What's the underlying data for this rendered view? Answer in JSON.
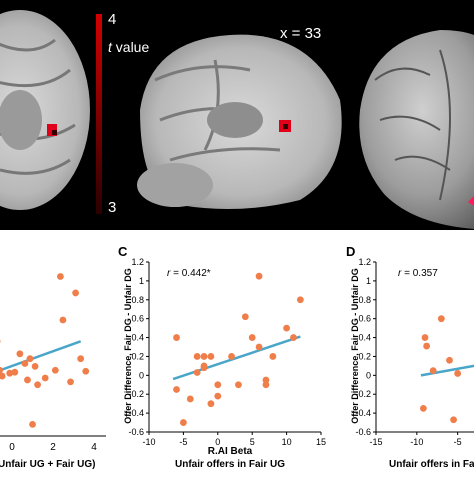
{
  "colorbar": {
    "max_label": "4",
    "min_label": "3",
    "stat_label_italic": "t",
    "stat_label_rest": " value"
  },
  "brain": {
    "slice_label": "x = 33"
  },
  "panels": {
    "left": {
      "x_tick_labels": [
        "0",
        "2",
        "4"
      ],
      "xlabel": "Unfair UG + Fair UG)"
    },
    "c": {
      "letter": "C",
      "r_italic": "r",
      "r_value": " = 0.442*",
      "ylabel": "Offer Difference, Fair DG - Unfair DG",
      "x_title": "R.AI Beta",
      "xlabel": "Unfair offers in Fair UG",
      "y_tick_labels": [
        "1.2",
        "1",
        "0.8",
        "0.6",
        "0.4",
        "0.2",
        "0",
        "-0.2",
        "-0.4",
        "-0.6"
      ],
      "x_tick_labels": [
        "-10",
        "-5",
        "0",
        "5",
        "10",
        "15"
      ]
    },
    "d": {
      "letter": "D",
      "r_italic": "r",
      "r_value": " = 0.357",
      "ylabel": "Offer Difference, Fair DG - Unfair DG",
      "xlabel": "Unfair offers in Fair UG",
      "y_tick_labels": [
        "1.2",
        "1",
        "0.8",
        "0.6",
        "0.4",
        "0.2",
        "0",
        "-0.2",
        "-0.4",
        "-0.6"
      ],
      "x_tick_labels": [
        "-15",
        "-10",
        "-5"
      ]
    }
  },
  "colors": {
    "point": "#f07e4b",
    "fit": "#49a6c9",
    "activation": "#e0001a",
    "colorbar": "#c00000"
  },
  "chart_data": [
    {
      "type": "scatter",
      "panel": "left (partial)",
      "xlim": [
        -0.5,
        4
      ],
      "ylim": [
        -0.6,
        1.2
      ],
      "points": [
        [
          -0.3,
          0.38
        ],
        [
          -0.2,
          0.08
        ],
        [
          -0.1,
          0.02
        ],
        [
          0.2,
          0.05
        ],
        [
          0.4,
          0.06
        ],
        [
          0.6,
          0.25
        ],
        [
          0.8,
          0.15
        ],
        [
          0.9,
          -0.02
        ],
        [
          1.0,
          0.2
        ],
        [
          1.2,
          0.12
        ],
        [
          1.3,
          -0.07
        ],
        [
          1.6,
          0.0
        ],
        [
          2.0,
          0.08
        ],
        [
          2.2,
          1.05
        ],
        [
          2.3,
          0.6
        ],
        [
          2.6,
          -0.04
        ],
        [
          2.8,
          0.88
        ],
        [
          3.0,
          0.2
        ],
        [
          3.2,
          0.07
        ],
        [
          1.1,
          -0.48
        ]
      ],
      "fit": [
        [
          -0.5,
          0.05
        ],
        [
          3.0,
          0.38
        ]
      ]
    },
    {
      "type": "scatter",
      "panel": "C",
      "xlim": [
        -10,
        15
      ],
      "ylim": [
        -0.6,
        1.2
      ],
      "points": [
        [
          -6,
          0.4
        ],
        [
          -6,
          -0.15
        ],
        [
          -5,
          -0.5
        ],
        [
          -4,
          -0.25
        ],
        [
          -3,
          0.2
        ],
        [
          -3,
          0.03
        ],
        [
          -2,
          0.2
        ],
        [
          -2,
          0.1
        ],
        [
          -2,
          0.08
        ],
        [
          -1,
          0.2
        ],
        [
          -1,
          -0.3
        ],
        [
          0,
          -0.1
        ],
        [
          2,
          0.2
        ],
        [
          3,
          -0.1
        ],
        [
          4,
          0.62
        ],
        [
          5,
          0.4
        ],
        [
          6,
          1.05
        ],
        [
          6,
          0.3
        ],
        [
          7,
          -0.05
        ],
        [
          7,
          -0.1
        ],
        [
          8,
          0.2
        ],
        [
          10,
          0.5
        ],
        [
          11,
          0.4
        ],
        [
          12,
          0.8
        ],
        [
          0,
          -0.22
        ]
      ],
      "fit": [
        [
          -6.5,
          -0.04
        ],
        [
          12,
          0.41
        ]
      ]
    },
    {
      "type": "scatter",
      "panel": "D (partial)",
      "xlim": [
        -15,
        -3
      ],
      "ylim": [
        -0.6,
        1.2
      ],
      "points": [
        [
          -9,
          0.4
        ],
        [
          -8.8,
          0.31
        ],
        [
          -9.2,
          -0.35
        ],
        [
          -7,
          0.6
        ],
        [
          -6,
          0.16
        ],
        [
          -5.5,
          -0.47
        ],
        [
          -8,
          0.05
        ],
        [
          -5,
          0.02
        ]
      ],
      "fit": [
        [
          -9.5,
          0.0
        ],
        [
          -3,
          0.1
        ]
      ]
    }
  ]
}
